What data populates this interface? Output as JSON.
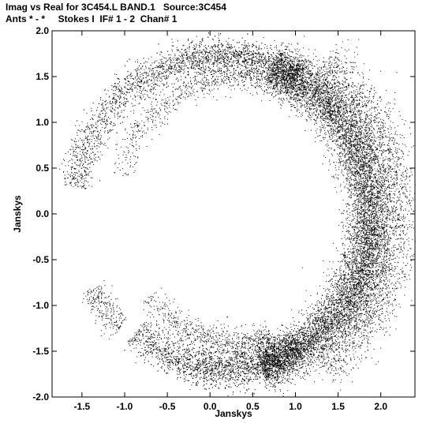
{
  "chart_data": {
    "type": "scatter",
    "title": "Imag vs Real for 3C454.L BAND.1   Source:3C454",
    "subtitle": "Ants * - *     Stokes I  IF# 1 - 2  Chan# 1",
    "xlabel": "Janskys",
    "ylabel": "Janskys",
    "xlim": [
      -1.85,
      2.4
    ],
    "ylim": [
      -2.0,
      2.0
    ],
    "x_ticks": [
      -1.5,
      -1.0,
      -0.5,
      0.0,
      0.5,
      1.0,
      1.5,
      2.0
    ],
    "x_tick_labels": [
      "-1.5",
      "-1.0",
      "-0.5",
      "0.0",
      "0.5",
      "1.0",
      "1.5",
      "2.0"
    ],
    "y_ticks": [
      -2.0,
      -1.5,
      -1.0,
      -0.5,
      0.0,
      0.5,
      1.0,
      1.5,
      2.0
    ],
    "y_tick_labels": [
      "-2.0",
      "-1.5",
      "-1.0",
      "-0.5",
      "0.0",
      "0.5",
      "1.0",
      "1.5",
      "2.0"
    ],
    "grid": false,
    "marker_color": "#000000",
    "series": [
      {
        "shape": "crescent",
        "description_points": [
          {
            "x": 1.85,
            "y": 0.0
          },
          {
            "x": 1.6,
            "y": 1.0
          },
          {
            "x": 1.0,
            "y": 1.6
          },
          {
            "x": 0.2,
            "y": 1.85
          },
          {
            "x": -0.5,
            "y": 1.65
          },
          {
            "x": -1.1,
            "y": 1.3
          },
          {
            "x": -1.5,
            "y": 0.8
          },
          {
            "x": -1.6,
            "y": 0.5
          },
          {
            "x": 1.6,
            "y": -1.0
          },
          {
            "x": 1.0,
            "y": -1.5
          },
          {
            "x": 0.2,
            "y": -1.75
          },
          {
            "x": -0.5,
            "y": -1.6
          },
          {
            "x": -1.0,
            "y": -1.35
          },
          {
            "x": -1.35,
            "y": -0.85
          }
        ]
      }
    ]
  }
}
